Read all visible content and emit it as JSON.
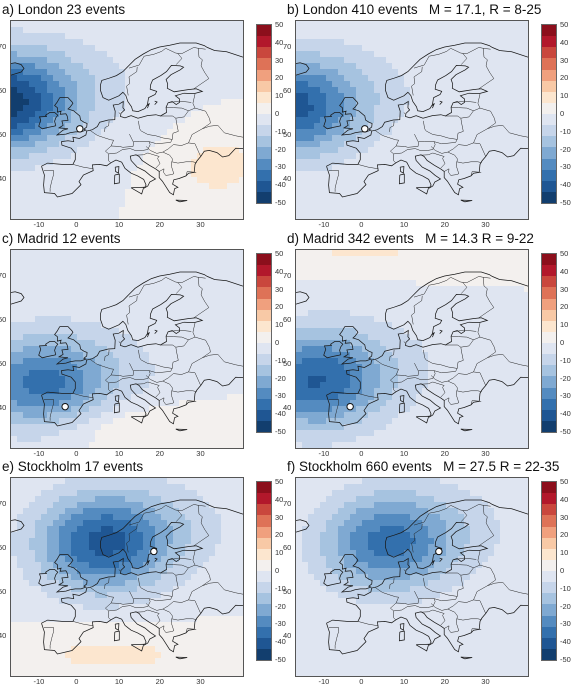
{
  "colorbar": {
    "ticks": [
      "50",
      "40",
      "30",
      "20",
      "10",
      "0",
      "-10",
      "-20",
      "-30",
      "-40",
      "-50"
    ],
    "colors": [
      "#8c0f1c",
      "#b2182b",
      "#c9473d",
      "#de7257",
      "#f0a07e",
      "#f8c9a6",
      "#fce6cf",
      "#f3f0ee",
      "#dfe5f1",
      "#c6d5ea",
      "#a6c3e0",
      "#7fa9d2",
      "#548bc0",
      "#3370ad",
      "#1f5693",
      "#123e6e"
    ]
  },
  "map_axes": {
    "lat_ticks": [
      "70",
      "60",
      "50",
      "40"
    ],
    "lon_ticks": [
      "-10",
      "0",
      "10",
      "20",
      "30"
    ]
  },
  "panels": [
    {
      "id": "a",
      "title": "a) London 23 events",
      "city": "London",
      "events": "23",
      "city_marker": {
        "lon": -0.1,
        "lat": 51.5
      },
      "field_center": {
        "lon": -20,
        "lat": 57
      },
      "peak": -42,
      "warm": "southeast"
    },
    {
      "id": "b",
      "title": "b) London 410 events   M = 17.1, R = 8-25",
      "city": "London",
      "events": "410",
      "city_marker": {
        "lon": -0.1,
        "lat": 51.5
      },
      "field_center": {
        "lon": -19,
        "lat": 56
      },
      "peak": -35,
      "warm": "none"
    },
    {
      "id": "c",
      "title": "c) Madrid 12 events",
      "city": "Madrid",
      "events": "12",
      "city_marker": {
        "lon": -3.7,
        "lat": 40.4
      },
      "field_center": {
        "lon": -10,
        "lat": 45
      },
      "peak": -30,
      "warm": "south"
    },
    {
      "id": "d",
      "title": "d) Madrid 342 events   M = 14.3 R = 9-22",
      "city": "Madrid",
      "events": "342",
      "city_marker": {
        "lon": -3.7,
        "lat": 40.4
      },
      "field_center": {
        "lon": -13,
        "lat": 46
      },
      "peak": -33,
      "warm": "north"
    },
    {
      "id": "e",
      "title": "e) Stockholm 17 events",
      "city": "Stockholm",
      "events": "17",
      "city_marker": {
        "lon": 18.1,
        "lat": 59.3
      },
      "field_center": {
        "lon": 5,
        "lat": 61
      },
      "peak": -35,
      "warm": "south"
    },
    {
      "id": "f",
      "title": "f) Stockholm 660 events   M = 27.5 R = 22-35",
      "city": "Stockholm",
      "events": "660",
      "city_marker": {
        "lon": 18.1,
        "lat": 59.3
      },
      "field_center": {
        "lon": 5,
        "lat": 61
      },
      "peak": -30,
      "warm": "none"
    }
  ]
}
